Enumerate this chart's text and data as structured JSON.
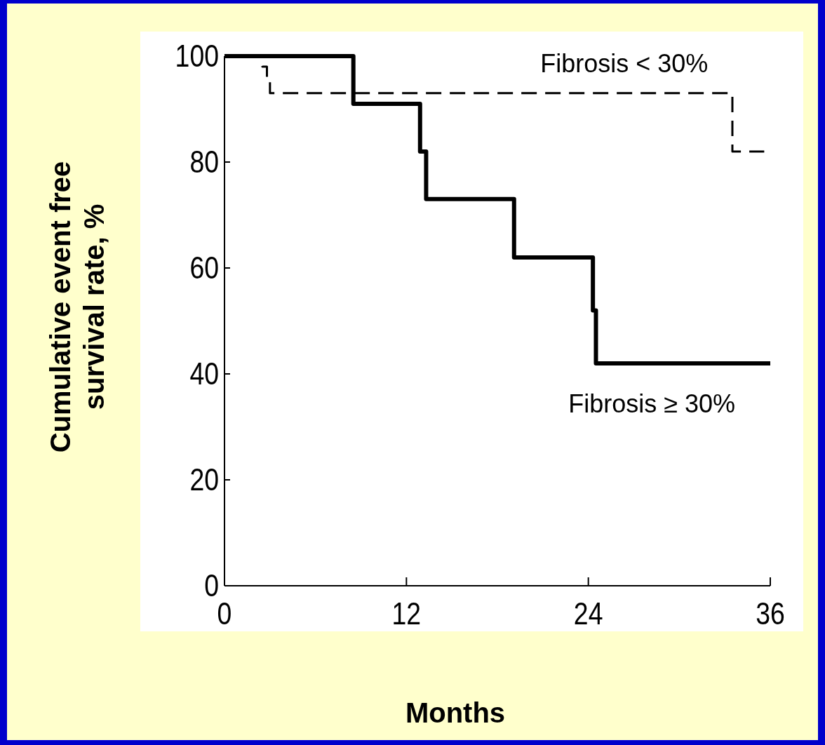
{
  "chart_data": {
    "type": "step",
    "xlabel": "Months",
    "ylabel": "Cumulative event free\nsurvival rate, %",
    "xlim": [
      0,
      36
    ],
    "ylim": [
      0,
      100
    ],
    "xticks": [
      0,
      12,
      24,
      36
    ],
    "yticks": [
      0,
      20,
      40,
      60,
      80,
      100
    ],
    "grid": false,
    "series": [
      {
        "name": "Fibrosis < 30%",
        "color": "#000000",
        "line_style": "dashed",
        "x": [
          0,
          2.5,
          2.8,
          3.0,
          33.5,
          35.6
        ],
        "values": [
          100,
          98,
          96,
          93,
          82,
          82
        ]
      },
      {
        "name": "Fibrosis ≥ 30%",
        "color": "#000000",
        "line_style": "solid",
        "x": [
          0,
          8.5,
          12.9,
          13.3,
          19.1,
          24.3,
          24.5,
          36
        ],
        "values": [
          100,
          91,
          82,
          73,
          62,
          52,
          42,
          42
        ]
      }
    ]
  }
}
